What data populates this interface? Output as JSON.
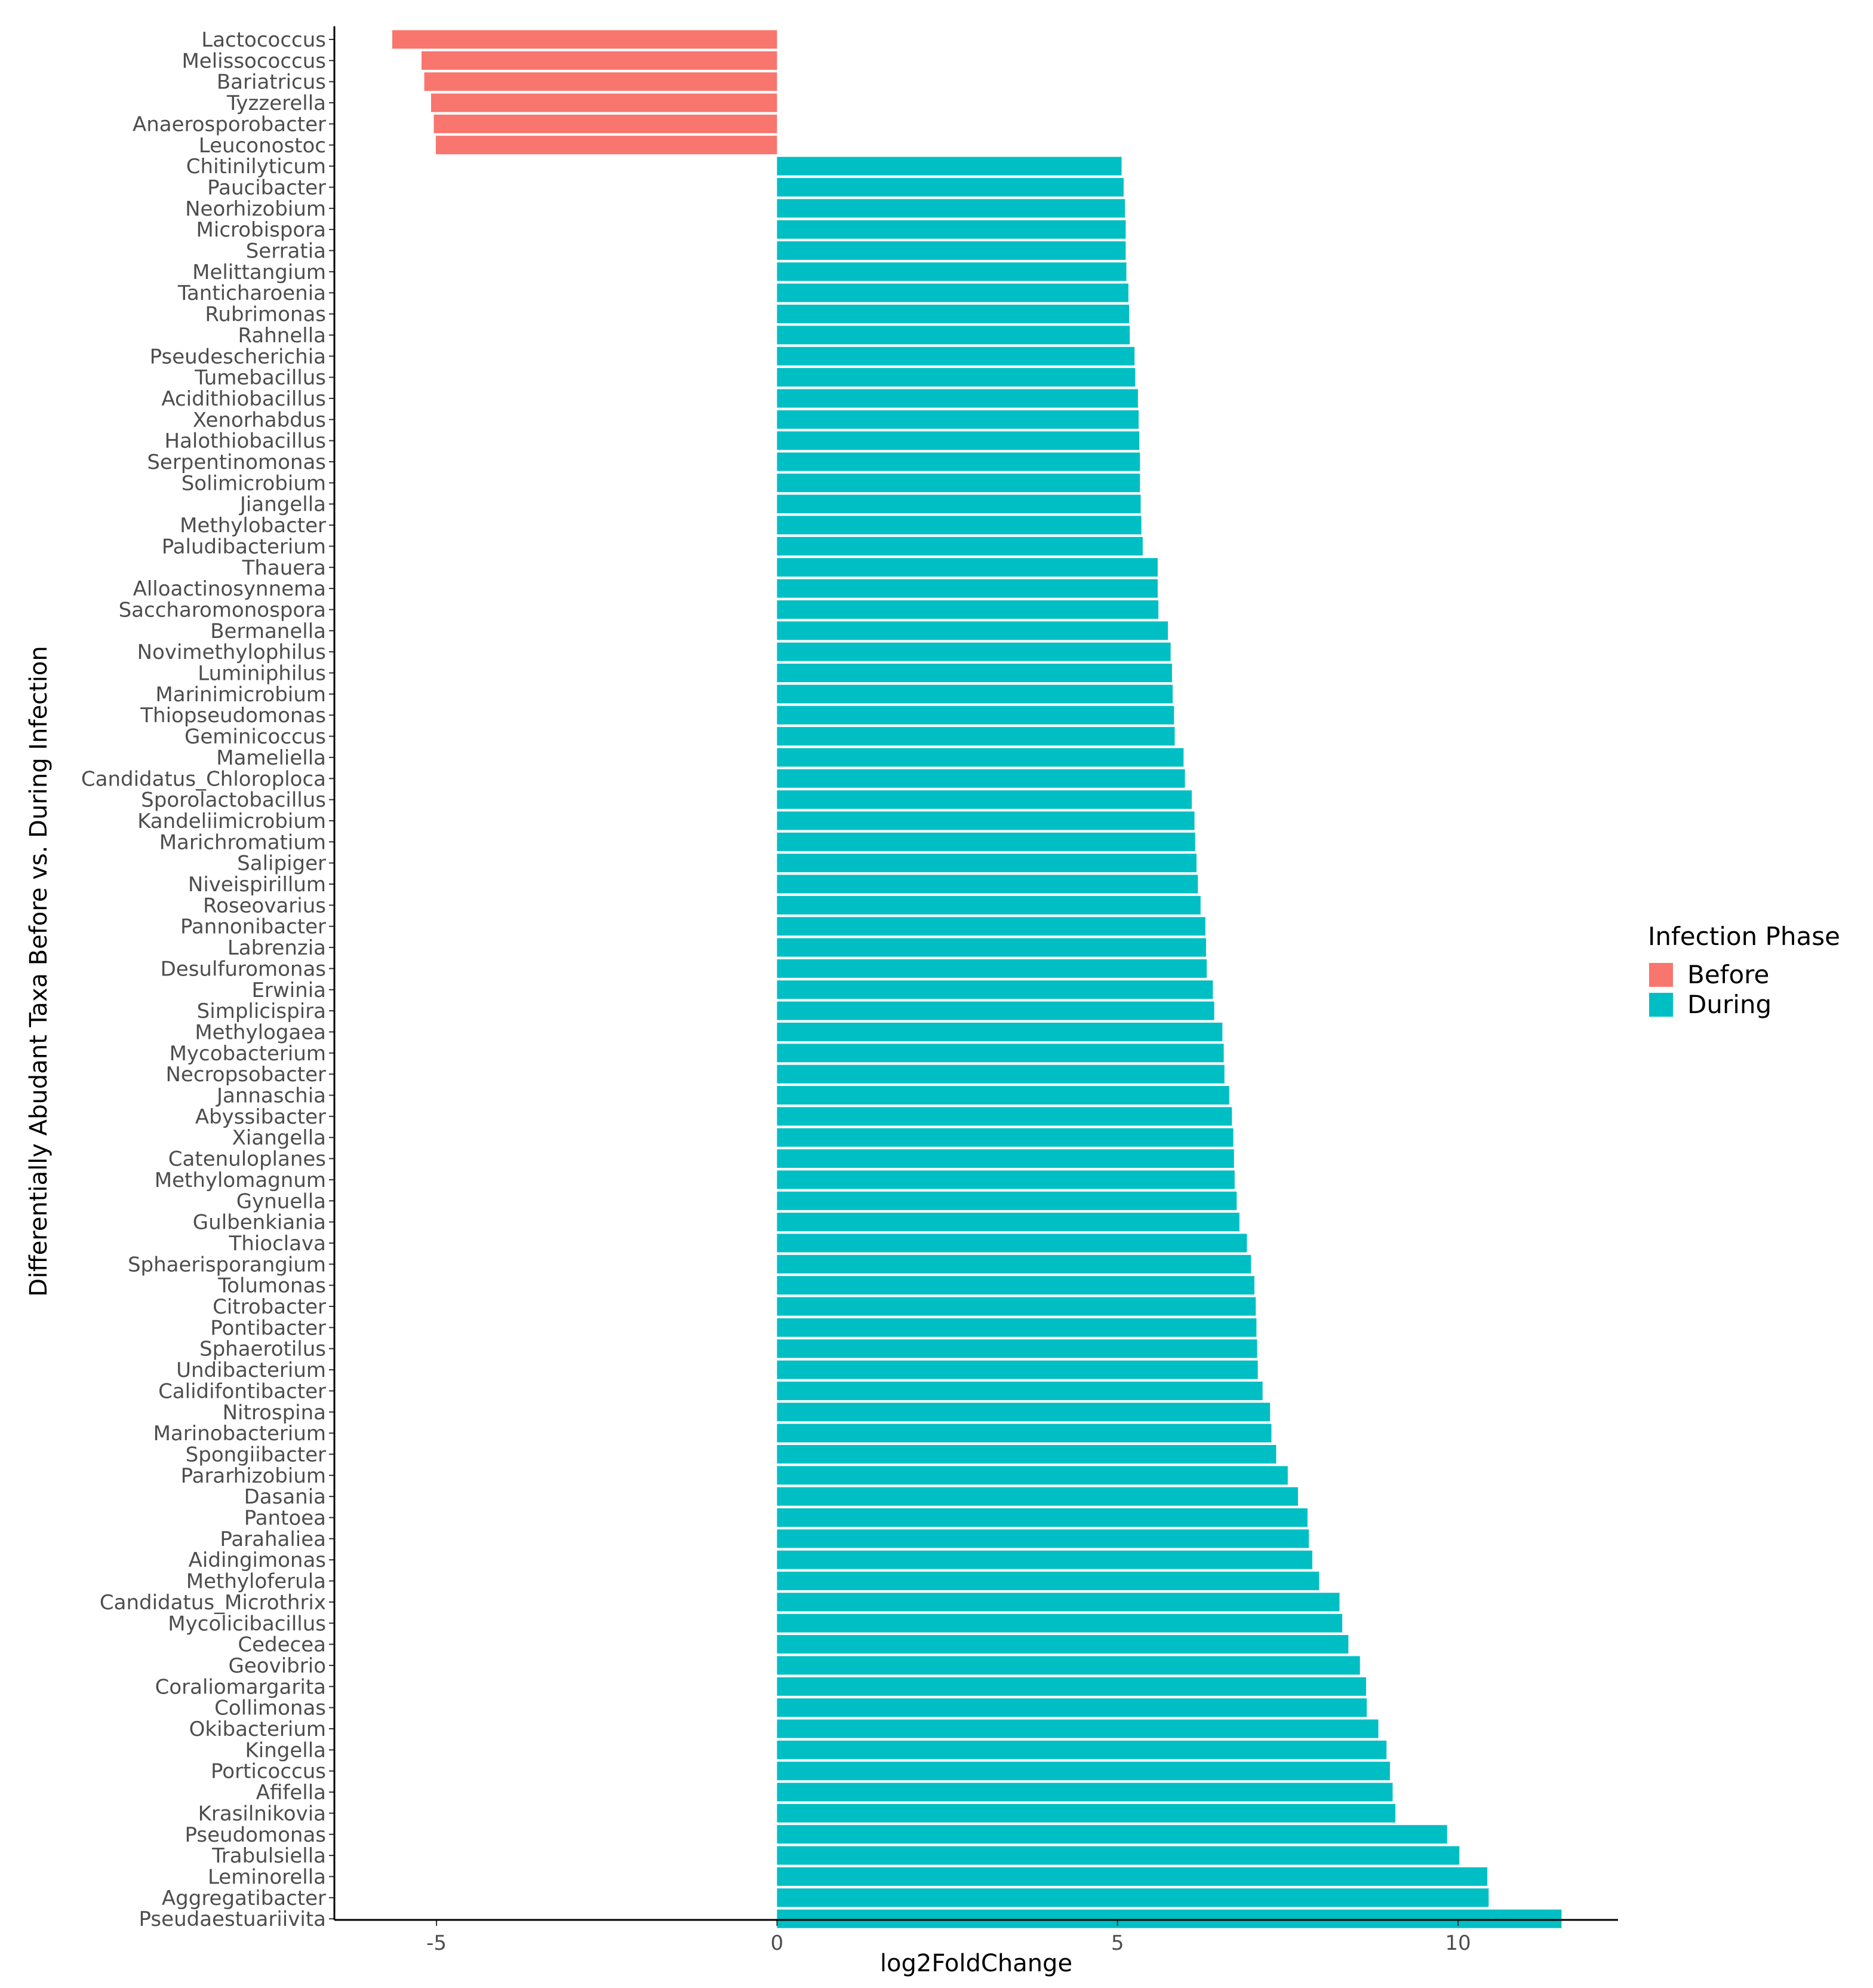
{
  "chart_data": {
    "type": "bar",
    "orientation": "horizontal",
    "title": "",
    "xlabel": "log2FoldChange",
    "ylabel": "Differentially Abudant Taxa Before vs. During Infection",
    "xlim": [
      -6.5,
      12.35
    ],
    "x_ticks": [
      -5,
      0,
      5,
      10
    ],
    "x_tick_labels": [
      "-5",
      "0",
      "5",
      "10"
    ],
    "grid": false,
    "legend": {
      "title": "Infection Phase",
      "position": "right",
      "entries": [
        {
          "label": "Before",
          "color": "#F8766D"
        },
        {
          "label": "During",
          "color": "#00BFC4"
        }
      ]
    },
    "categories": [
      "Lactococcus",
      "Melissococcus",
      "Bariatricus",
      "Tyzzerella",
      "Anaerosporobacter",
      "Leuconostoc",
      "Chitinilyticum",
      "Paucibacter",
      "Neorhizobium",
      "Microbispora",
      "Serratia",
      "Melittangium",
      "Tanticharoenia",
      "Rubrimonas",
      "Rahnella",
      "Pseudescherichia",
      "Tumebacillus",
      "Acidithiobacillus",
      "Xenorhabdus",
      "Halothiobacillus",
      "Serpentinomonas",
      "Solimicrobium",
      "Jiangella",
      "Methylobacter",
      "Paludibacterium",
      "Thauera",
      "Alloactinosynnema",
      "Saccharomonospora",
      "Bermanella",
      "Novimethylophilus",
      "Luminiphilus",
      "Marinimicrobium",
      "Thiopseudomonas",
      "Geminicoccus",
      "Mameliella",
      "Candidatus_Chloroploca",
      "Sporolactobacillus",
      "Kandeliimicrobium",
      "Marichromatium",
      "Salipiger",
      "Niveispirillum",
      "Roseovarius",
      "Pannonibacter",
      "Labrenzia",
      "Desulfuromonas",
      "Erwinia",
      "Simplicispira",
      "Methylogaea",
      "Mycobacterium",
      "Necropsobacter",
      "Jannaschia",
      "Abyssibacter",
      "Xiangella",
      "Catenuloplanes",
      "Methylomagnum",
      "Gynuella",
      "Gulbenkiania",
      "Thioclava",
      "Sphaerisporangium",
      "Tolumonas",
      "Citrobacter",
      "Pontibacter",
      "Sphaerotilus",
      "Undibacterium",
      "Calidifontibacter",
      "Nitrospina",
      "Marinobacterium",
      "Spongiibacter",
      "Pararhizobium",
      "Dasania",
      "Pantoea",
      "Parahaliea",
      "Aidingimonas",
      "Methyloferula",
      "Candidatus_Microthrix",
      "Mycolicibacillus",
      "Cedecea",
      "Geovibrio",
      "Coraliomargarita",
      "Collimonas",
      "Okibacterium",
      "Kingella",
      "Porticoccus",
      "Afifella",
      "Krasilnikovia",
      "Pseudomonas",
      "Trabulsiella",
      "Leminorella",
      "Aggregatibacter",
      "Pseudaestuariivita"
    ],
    "values": [
      -5.65,
      -5.22,
      -5.18,
      -5.08,
      -5.04,
      -5.01,
      5.06,
      5.09,
      5.11,
      5.12,
      5.12,
      5.13,
      5.16,
      5.17,
      5.18,
      5.25,
      5.26,
      5.3,
      5.31,
      5.32,
      5.33,
      5.33,
      5.34,
      5.35,
      5.37,
      5.59,
      5.59,
      5.6,
      5.74,
      5.78,
      5.8,
      5.81,
      5.83,
      5.84,
      5.97,
      5.99,
      6.09,
      6.13,
      6.14,
      6.16,
      6.18,
      6.22,
      6.29,
      6.3,
      6.31,
      6.4,
      6.42,
      6.54,
      6.56,
      6.57,
      6.64,
      6.68,
      6.7,
      6.71,
      6.72,
      6.75,
      6.79,
      6.9,
      6.96,
      7.01,
      7.03,
      7.04,
      7.05,
      7.06,
      7.13,
      7.24,
      7.26,
      7.33,
      7.5,
      7.65,
      7.79,
      7.81,
      7.86,
      7.96,
      8.26,
      8.3,
      8.39,
      8.56,
      8.65,
      8.66,
      8.83,
      8.95,
      9.0,
      9.04,
      9.08,
      9.84,
      10.02,
      10.43,
      10.45,
      11.52
    ],
    "colors": {
      "Before": "#F8766D",
      "During": "#00BFC4"
    }
  }
}
